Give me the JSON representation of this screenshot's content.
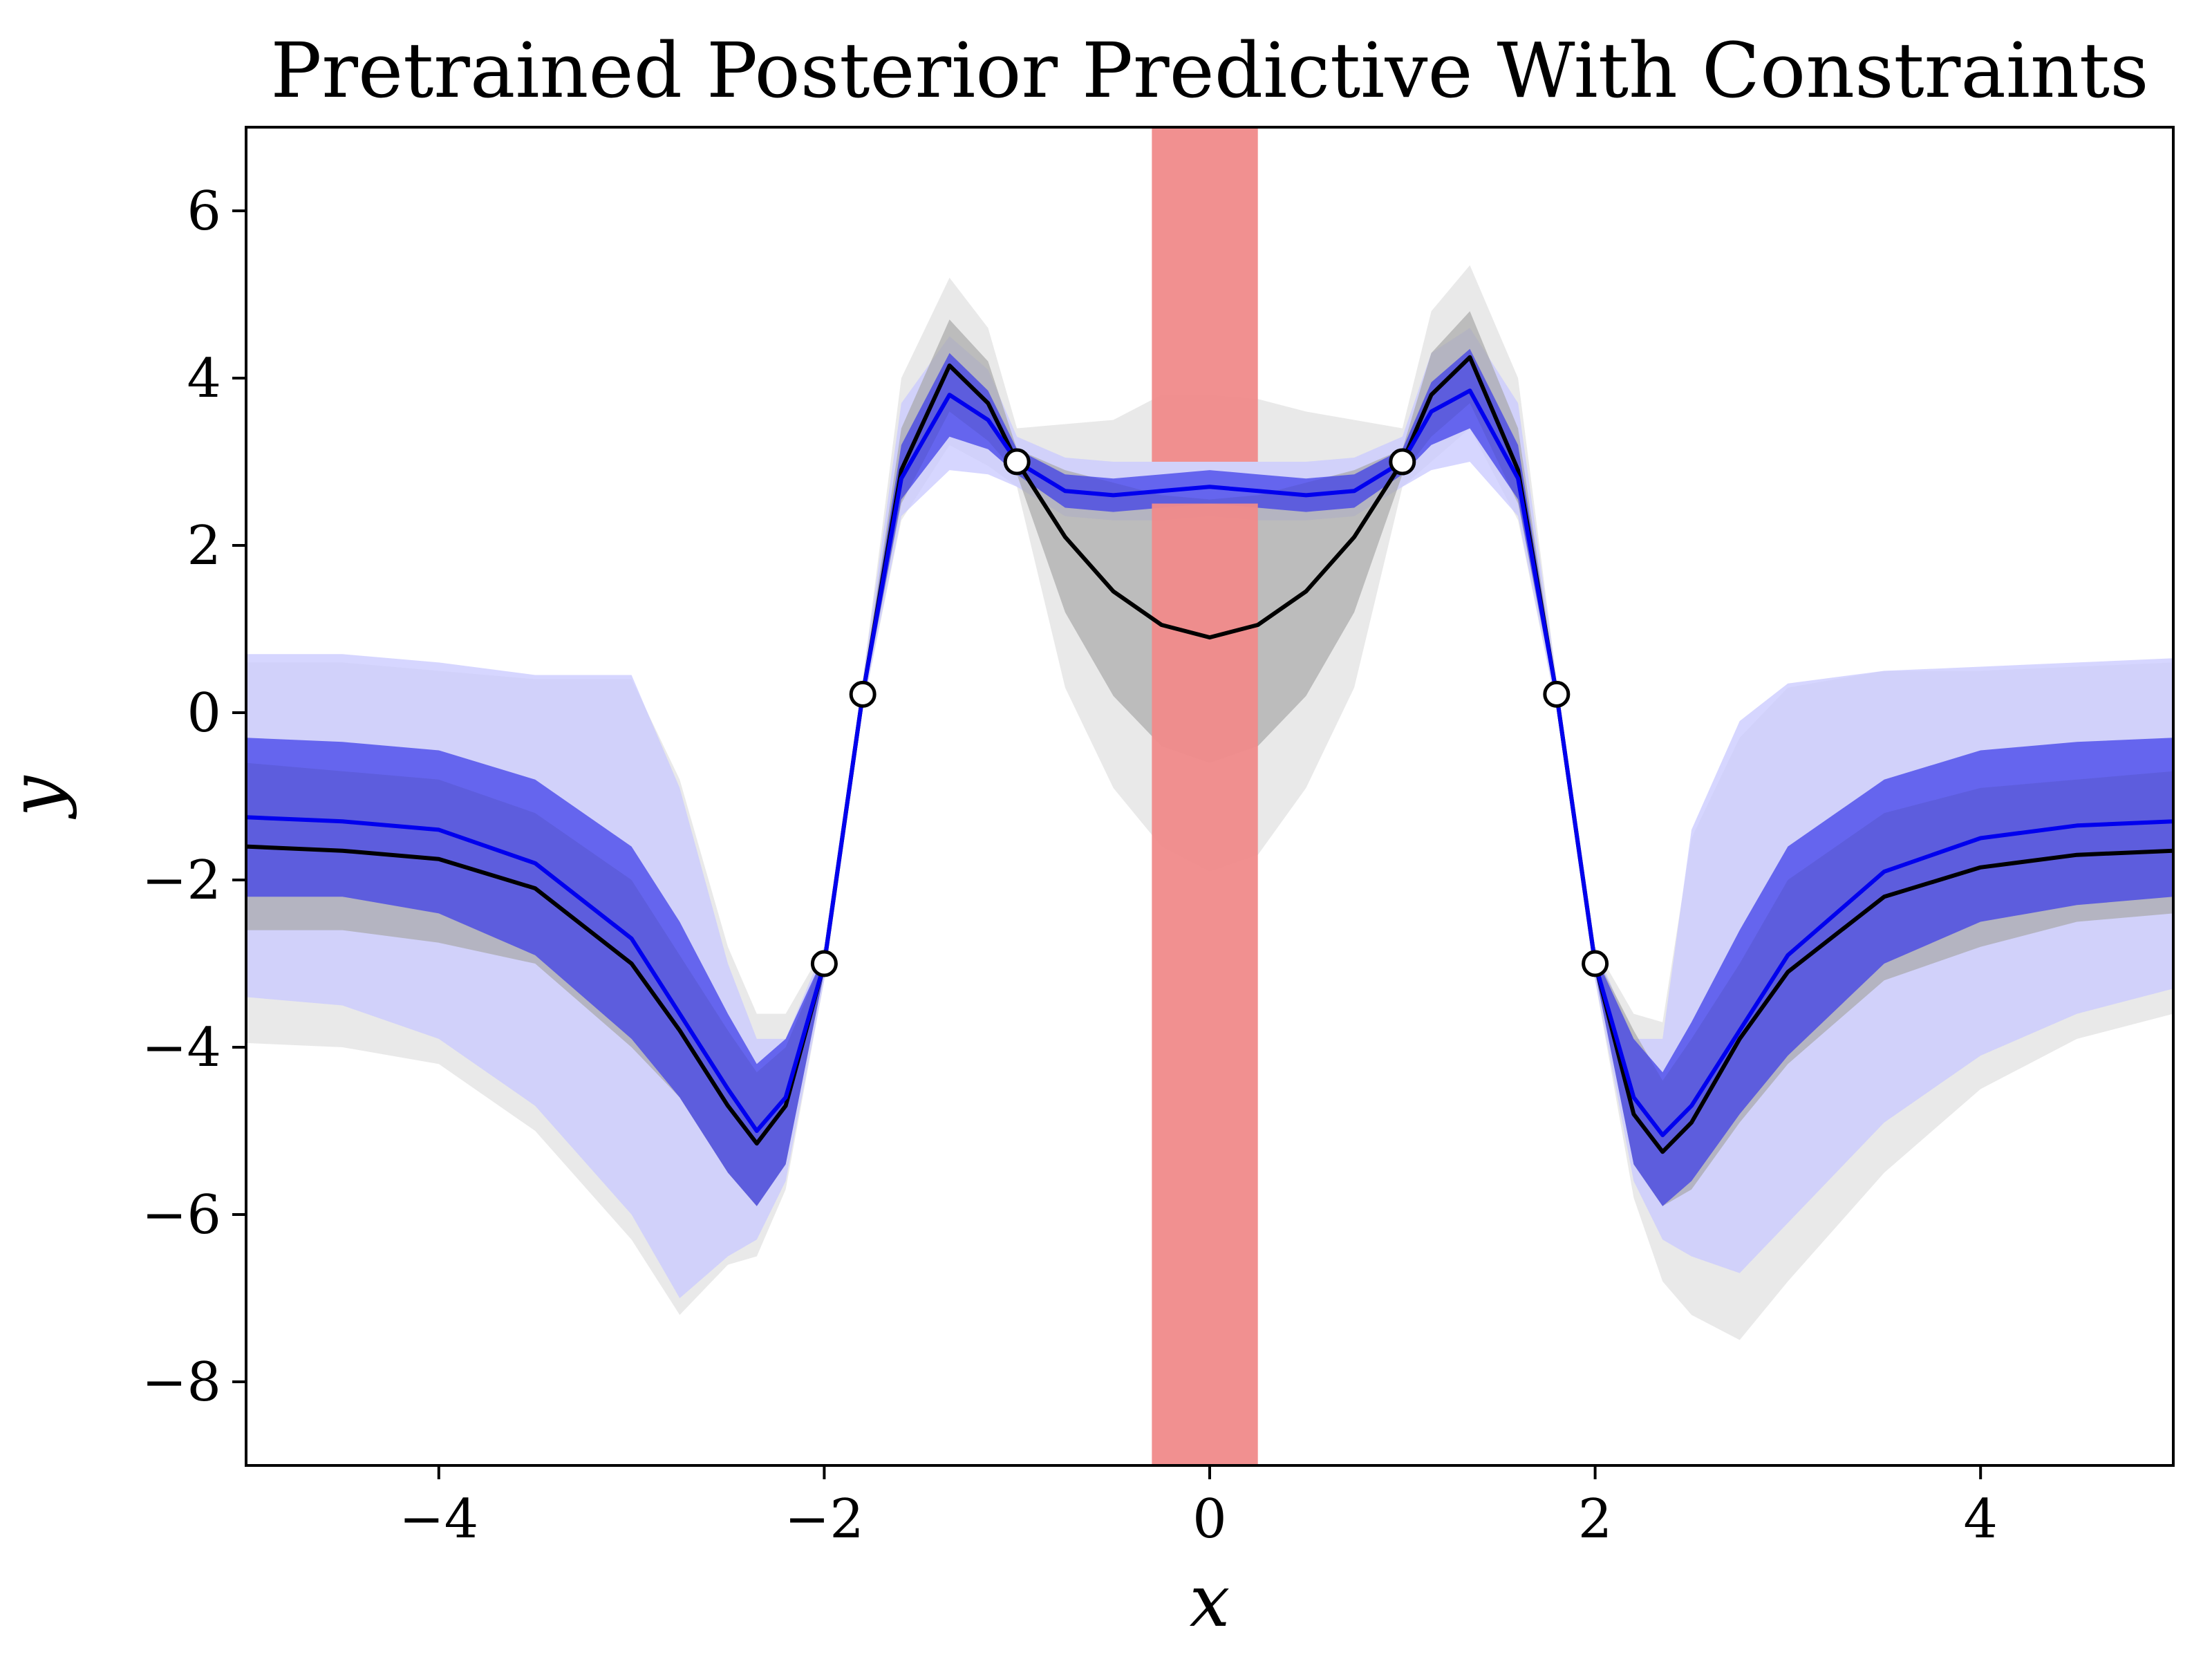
{
  "chart_data": {
    "type": "line",
    "title": "Pretrained Posterior Predictive With Constraints",
    "xlabel": "x",
    "ylabel": "y",
    "xlim": [
      -5,
      5
    ],
    "ylim": [
      -9,
      7
    ],
    "xticks": [
      -4,
      -2,
      0,
      2,
      4
    ],
    "xtick_labels": [
      "−4",
      "−2",
      "0",
      "2",
      "4"
    ],
    "yticks": [
      -8,
      -6,
      -4,
      -2,
      0,
      2,
      4,
      6
    ],
    "ytick_labels": [
      "−8",
      "−6",
      "−4",
      "−2",
      "0",
      "2",
      "4",
      "6"
    ],
    "grid": false,
    "constraint_region": {
      "x": [
        -0.3,
        0.25
      ],
      "y_bands": [
        [
          3.0,
          7.0
        ],
        [
          -9.0,
          2.5
        ]
      ],
      "color": "#f08a8a"
    },
    "data_points": {
      "x": [
        -2.0,
        -1.8,
        -1.0,
        1.0,
        1.8,
        2.0
      ],
      "y": [
        -3.0,
        0.22,
        3.0,
        3.0,
        0.22,
        -3.0
      ]
    },
    "series": [
      {
        "color": "#000000",
        "x": [
          -5,
          -4.5,
          -4,
          -3.5,
          -3,
          -2.75,
          -2.5,
          -2.35,
          -2.2,
          -2.0,
          -1.8,
          -1.6,
          -1.35,
          -1.15,
          -1.0,
          -0.75,
          -0.5,
          -0.25,
          0,
          0.25,
          0.5,
          0.75,
          1.0,
          1.15,
          1.35,
          1.6,
          1.8,
          2.0,
          2.2,
          2.35,
          2.5,
          2.75,
          3,
          3.5,
          4,
          4.5,
          5
        ],
        "y": [
          -1.6,
          -1.65,
          -1.75,
          -2.1,
          -3.0,
          -3.8,
          -4.7,
          -5.15,
          -4.7,
          -3.0,
          0.22,
          2.9,
          4.15,
          3.7,
          3.0,
          2.1,
          1.45,
          1.05,
          0.9,
          1.05,
          1.45,
          2.1,
          3.0,
          3.8,
          4.25,
          2.9,
          0.22,
          -3.0,
          -4.8,
          -5.25,
          -4.9,
          -3.9,
          -3.1,
          -2.2,
          -1.85,
          -1.7,
          -1.65
        ],
        "ci_inner": {
          "lower": [
            -2.6,
            -2.6,
            -2.75,
            -3.0,
            -4.0,
            -4.6,
            -5.5,
            -5.9,
            -5.4,
            -3.1,
            0.12,
            2.5,
            3.6,
            3.25,
            2.85,
            1.2,
            0.2,
            -0.4,
            -0.6,
            -0.4,
            0.2,
            1.2,
            2.85,
            3.3,
            3.7,
            2.5,
            0.12,
            -3.1,
            -5.4,
            -5.9,
            -5.7,
            -4.9,
            -4.2,
            -3.2,
            -2.8,
            -2.5,
            -2.4
          ],
          "upper": [
            -0.6,
            -0.7,
            -0.8,
            -1.2,
            -2.0,
            -2.9,
            -3.8,
            -4.3,
            -4.0,
            -2.9,
            0.32,
            3.4,
            4.7,
            4.2,
            3.15,
            2.9,
            2.75,
            2.6,
            2.55,
            2.6,
            2.75,
            2.9,
            3.15,
            4.3,
            4.8,
            3.4,
            0.32,
            -2.9,
            -3.8,
            -4.4,
            -3.9,
            -3.0,
            -2.0,
            -1.2,
            -0.9,
            -0.8,
            -0.7
          ]
        },
        "ci_outer": {
          "lower": [
            -3.95,
            -4.0,
            -4.2,
            -5.0,
            -6.3,
            -7.2,
            -6.6,
            -6.5,
            -5.7,
            -3.2,
            0.05,
            2.3,
            3.2,
            2.95,
            2.7,
            0.3,
            -0.9,
            -1.6,
            -1.9,
            -1.7,
            -0.9,
            0.3,
            2.7,
            3.0,
            3.4,
            2.3,
            0.05,
            -3.2,
            -5.8,
            -6.8,
            -7.2,
            -7.5,
            -6.8,
            -5.5,
            -4.5,
            -3.9,
            -3.6
          ],
          "upper": [
            0.6,
            0.6,
            0.5,
            0.4,
            0.4,
            -0.8,
            -2.8,
            -3.6,
            -3.6,
            -2.8,
            0.4,
            4.0,
            5.2,
            4.6,
            3.4,
            3.45,
            3.5,
            3.8,
            3.8,
            3.75,
            3.6,
            3.5,
            3.4,
            4.8,
            5.35,
            4.0,
            0.4,
            -2.8,
            -3.6,
            -3.7,
            -1.5,
            -0.3,
            0.3,
            0.5,
            0.5,
            0.55,
            0.6
          ]
        }
      },
      {
        "color": "#0000ee",
        "x": [
          -5,
          -4.5,
          -4,
          -3.5,
          -3,
          -2.75,
          -2.5,
          -2.35,
          -2.2,
          -2.0,
          -1.8,
          -1.6,
          -1.35,
          -1.15,
          -1.0,
          -0.75,
          -0.5,
          -0.25,
          0,
          0.25,
          0.5,
          0.75,
          1.0,
          1.15,
          1.35,
          1.6,
          1.8,
          2.0,
          2.2,
          2.35,
          2.5,
          2.75,
          3,
          3.5,
          4,
          4.5,
          5
        ],
        "y": [
          -1.25,
          -1.3,
          -1.4,
          -1.8,
          -2.7,
          -3.6,
          -4.5,
          -5.0,
          -4.6,
          -3.0,
          0.22,
          2.8,
          3.8,
          3.5,
          3.0,
          2.65,
          2.6,
          2.65,
          2.7,
          2.65,
          2.6,
          2.65,
          3.0,
          3.6,
          3.85,
          2.8,
          0.22,
          -3.0,
          -4.6,
          -5.05,
          -4.7,
          -3.8,
          -2.9,
          -1.9,
          -1.5,
          -1.35,
          -1.3
        ],
        "ci_inner": {
          "lower": [
            -2.2,
            -2.2,
            -2.4,
            -2.9,
            -3.9,
            -4.6,
            -5.5,
            -5.9,
            -5.4,
            -3.1,
            0.12,
            2.55,
            3.3,
            3.15,
            2.85,
            2.45,
            2.4,
            2.45,
            2.5,
            2.45,
            2.4,
            2.45,
            2.85,
            3.2,
            3.4,
            2.55,
            0.12,
            -3.1,
            -5.4,
            -5.9,
            -5.6,
            -4.8,
            -4.1,
            -3.0,
            -2.5,
            -2.3,
            -2.2
          ],
          "upper": [
            -0.3,
            -0.35,
            -0.45,
            -0.8,
            -1.6,
            -2.5,
            -3.6,
            -4.2,
            -3.9,
            -2.9,
            0.32,
            3.2,
            4.3,
            3.85,
            3.15,
            2.85,
            2.8,
            2.85,
            2.9,
            2.85,
            2.8,
            2.85,
            3.15,
            3.95,
            4.35,
            3.2,
            0.32,
            -2.9,
            -3.9,
            -4.3,
            -3.7,
            -2.6,
            -1.6,
            -0.8,
            -0.45,
            -0.35,
            -0.3
          ]
        },
        "ci_outer": {
          "lower": [
            -3.4,
            -3.5,
            -3.9,
            -4.7,
            -6.0,
            -7.0,
            -6.5,
            -6.3,
            -5.6,
            -3.2,
            0.05,
            2.35,
            2.9,
            2.85,
            2.7,
            2.35,
            2.3,
            2.3,
            2.35,
            2.3,
            2.3,
            2.35,
            2.7,
            2.9,
            3.0,
            2.35,
            0.05,
            -3.2,
            -5.6,
            -6.3,
            -6.5,
            -6.7,
            -6.1,
            -4.9,
            -4.1,
            -3.6,
            -3.3
          ],
          "upper": [
            0.7,
            0.7,
            0.6,
            0.45,
            0.45,
            -0.9,
            -3.0,
            -3.9,
            -3.9,
            -2.8,
            0.4,
            3.7,
            4.5,
            4.1,
            3.3,
            3.05,
            3.0,
            3.0,
            3.0,
            3.0,
            3.0,
            3.05,
            3.3,
            4.3,
            4.6,
            3.7,
            0.4,
            -2.8,
            -3.9,
            -3.9,
            -1.4,
            -0.1,
            0.35,
            0.5,
            0.55,
            0.6,
            0.65
          ]
        }
      }
    ]
  }
}
